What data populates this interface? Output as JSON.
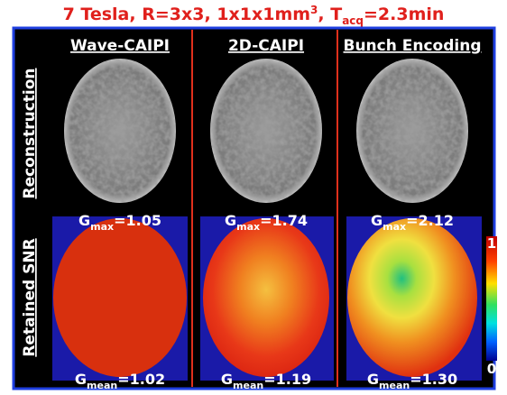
{
  "title": {
    "text": "7 Tesla, R=3x3, 1x1x1mm",
    "sup": "3",
    "text2": ", T",
    "sub": "acq",
    "text3": "=2.3min"
  },
  "rows": [
    "Reconstruction",
    "Retained SNR"
  ],
  "columns": [
    {
      "label": "Wave-CAIPI",
      "gmax": {
        "base": "G",
        "sub": "max",
        "value": "=1.05"
      },
      "gmean": {
        "base": "G",
        "sub": "mean",
        "value": "=1.02"
      }
    },
    {
      "label": "2D-CAIPI",
      "gmax": {
        "base": "G",
        "sub": "max",
        "value": "=1.74"
      },
      "gmean": {
        "base": "G",
        "sub": "mean",
        "value": "=1.19"
      }
    },
    {
      "label": "Bunch Encoding",
      "gmax": {
        "base": "G",
        "sub": "max",
        "value": "=2.12"
      },
      "gmean": {
        "base": "G",
        "sub": "mean",
        "value": "=1.30"
      }
    }
  ],
  "colorbar": {
    "max": "1",
    "min": "0"
  }
}
